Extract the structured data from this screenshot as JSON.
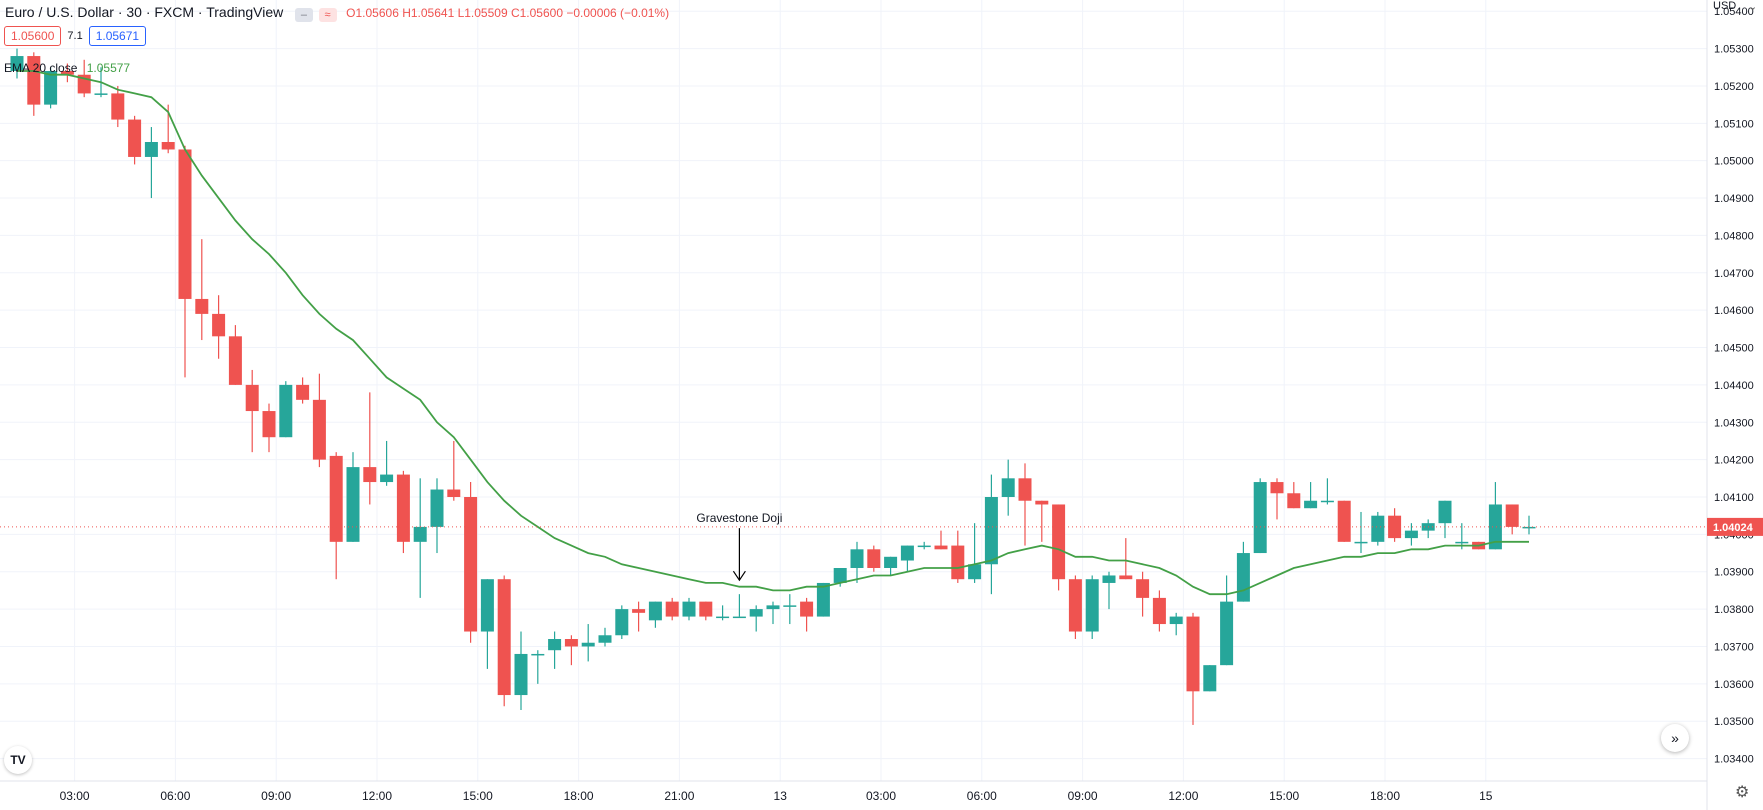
{
  "header": {
    "title": "Euro / U.S. Dollar · 30 · FXCM · TradingView",
    "ohlc": "O1.05606 H1.05641 L1.05509 C1.05600 −0.00006 (−0.01%)",
    "bid": "1.05600",
    "spread": "7.1",
    "ask": "1.05671"
  },
  "indicator": {
    "name": "EMA 20 close",
    "value": "1.05577"
  },
  "currency": "USD",
  "last_price_label": "1.04024",
  "annotation": {
    "text": "Gravestone Doji"
  },
  "colors": {
    "up": "#26a69a",
    "down": "#ef5350",
    "ema": "#43a047",
    "grid": "#f0f3fa"
  },
  "chart_data": {
    "type": "candlestick",
    "title": "Euro / U.S. Dollar · 30 · FXCM · TradingView",
    "ylim": [
      1.0334,
      1.0543
    ],
    "y_ticks": [
      "1.05400",
      "1.05300",
      "1.05200",
      "1.05100",
      "1.05000",
      "1.04900",
      "1.04800",
      "1.04700",
      "1.04600",
      "1.04500",
      "1.04400",
      "1.04300",
      "1.04200",
      "1.04100",
      "1.04000",
      "1.03900",
      "1.03800",
      "1.03700",
      "1.03600",
      "1.03500",
      "1.03400"
    ],
    "x_ticks": [
      {
        "label": "03:00",
        "index": 2
      },
      {
        "label": "06:00",
        "index": 8
      },
      {
        "label": "09:00",
        "index": 14
      },
      {
        "label": "12:00",
        "index": 20
      },
      {
        "label": "15:00",
        "index": 26
      },
      {
        "label": "18:00",
        "index": 32
      },
      {
        "label": "21:00",
        "index": 38
      },
      {
        "label": "13",
        "index": 44
      },
      {
        "label": "03:00",
        "index": 50
      },
      {
        "label": "06:00",
        "index": 56
      },
      {
        "label": "09:00",
        "index": 62
      },
      {
        "label": "12:00",
        "index": 68
      },
      {
        "label": "15:00",
        "index": 74
      },
      {
        "label": "18:00",
        "index": 80
      },
      {
        "label": "15",
        "index": 86
      }
    ],
    "candles": [
      [
        1.0524,
        1.053,
        1.0522,
        1.0528
      ],
      [
        1.0528,
        1.0529,
        1.0512,
        1.0515
      ],
      [
        1.0515,
        1.0525,
        1.0514,
        1.0524
      ],
      [
        1.0524,
        1.0526,
        1.0521,
        1.0523
      ],
      [
        1.0523,
        1.0527,
        1.0517,
        1.0518
      ],
      [
        1.0518,
        1.0525,
        1.0517,
        1.0518
      ],
      [
        1.0518,
        1.052,
        1.0509,
        1.0511
      ],
      [
        1.0511,
        1.0512,
        1.0499,
        1.0501
      ],
      [
        1.0501,
        1.0509,
        1.049,
        1.0505
      ],
      [
        1.0505,
        1.0515,
        1.0502,
        1.0503
      ],
      [
        1.0503,
        1.0504,
        1.0442,
        1.0463
      ],
      [
        1.0463,
        1.0479,
        1.0452,
        1.0459
      ],
      [
        1.0459,
        1.0464,
        1.0447,
        1.0453
      ],
      [
        1.0453,
        1.0456,
        1.044,
        1.044
      ],
      [
        1.044,
        1.0444,
        1.0422,
        1.0433
      ],
      [
        1.0433,
        1.0435,
        1.0422,
        1.0426
      ],
      [
        1.0426,
        1.0441,
        1.0426,
        1.044
      ],
      [
        1.044,
        1.0442,
        1.0435,
        1.0436
      ],
      [
        1.0436,
        1.0443,
        1.0418,
        1.042
      ],
      [
        1.0421,
        1.0422,
        1.0388,
        1.0398
      ],
      [
        1.0398,
        1.0422,
        1.0398,
        1.0418
      ],
      [
        1.0418,
        1.0438,
        1.0408,
        1.0414
      ],
      [
        1.0414,
        1.0425,
        1.0413,
        1.0416
      ],
      [
        1.0416,
        1.0417,
        1.0395,
        1.0398
      ],
      [
        1.0398,
        1.0415,
        1.0383,
        1.0402
      ],
      [
        1.0402,
        1.0415,
        1.0395,
        1.0412
      ],
      [
        1.0412,
        1.0425,
        1.0409,
        1.041
      ],
      [
        1.041,
        1.0414,
        1.0371,
        1.0374
      ],
      [
        1.0374,
        1.0388,
        1.0364,
        1.0388
      ],
      [
        1.0388,
        1.0389,
        1.0354,
        1.0357
      ],
      [
        1.0357,
        1.0374,
        1.0353,
        1.0368
      ],
      [
        1.0368,
        1.0369,
        1.036,
        1.0368
      ],
      [
        1.0369,
        1.0374,
        1.0364,
        1.0372
      ],
      [
        1.0372,
        1.0373,
        1.0365,
        1.037
      ],
      [
        1.037,
        1.0376,
        1.0366,
        1.0371
      ],
      [
        1.0371,
        1.0375,
        1.037,
        1.0373
      ],
      [
        1.0373,
        1.0381,
        1.0372,
        1.038
      ],
      [
        1.038,
        1.0382,
        1.0374,
        1.0379
      ],
      [
        1.0377,
        1.0382,
        1.0375,
        1.0382
      ],
      [
        1.0382,
        1.0383,
        1.0377,
        1.0378
      ],
      [
        1.0378,
        1.0383,
        1.0377,
        1.0382
      ],
      [
        1.0382,
        1.0382,
        1.0377,
        1.0378
      ],
      [
        1.0378,
        1.0381,
        1.0377,
        1.0378
      ],
      [
        1.0378,
        1.0384,
        1.0378,
        1.0378
      ],
      [
        1.0378,
        1.0381,
        1.0374,
        1.038
      ],
      [
        1.038,
        1.0382,
        1.0376,
        1.0381
      ],
      [
        1.0381,
        1.0384,
        1.0376,
        1.0381
      ],
      [
        1.0382,
        1.0383,
        1.0374,
        1.0378
      ],
      [
        1.0378,
        1.0387,
        1.0378,
        1.0387
      ],
      [
        1.0387,
        1.0391,
        1.0386,
        1.0391
      ],
      [
        1.0391,
        1.0398,
        1.0387,
        1.0396
      ],
      [
        1.0396,
        1.0397,
        1.039,
        1.0391
      ],
      [
        1.0391,
        1.0394,
        1.0389,
        1.0394
      ],
      [
        1.0393,
        1.0397,
        1.039,
        1.0397
      ],
      [
        1.0397,
        1.0398,
        1.0396,
        1.0397
      ],
      [
        1.0397,
        1.0401,
        1.0396,
        1.0396
      ],
      [
        1.0397,
        1.0401,
        1.0387,
        1.0388
      ],
      [
        1.0388,
        1.0403,
        1.0387,
        1.0392
      ],
      [
        1.0392,
        1.0416,
        1.0384,
        1.041
      ],
      [
        1.041,
        1.042,
        1.0405,
        1.0415
      ],
      [
        1.0415,
        1.0419,
        1.0397,
        1.0409
      ],
      [
        1.0409,
        1.0409,
        1.0398,
        1.0408
      ],
      [
        1.0408,
        1.0408,
        1.0385,
        1.0388
      ],
      [
        1.0388,
        1.0389,
        1.0372,
        1.0374
      ],
      [
        1.0374,
        1.0389,
        1.0372,
        1.0388
      ],
      [
        1.0387,
        1.039,
        1.038,
        1.0389
      ],
      [
        1.0389,
        1.0399,
        1.0388,
        1.0388
      ],
      [
        1.0388,
        1.039,
        1.0378,
        1.0383
      ],
      [
        1.0383,
        1.0385,
        1.0374,
        1.0376
      ],
      [
        1.0376,
        1.0379,
        1.0373,
        1.0378
      ],
      [
        1.0378,
        1.0379,
        1.0349,
        1.0358
      ],
      [
        1.0358,
        1.0365,
        1.0358,
        1.0365
      ],
      [
        1.0365,
        1.0389,
        1.0365,
        1.0382
      ],
      [
        1.0382,
        1.0398,
        1.0382,
        1.0395
      ],
      [
        1.0395,
        1.0415,
        1.0395,
        1.0414
      ],
      [
        1.0414,
        1.0415,
        1.0404,
        1.0411
      ],
      [
        1.0411,
        1.0414,
        1.0407,
        1.0407
      ],
      [
        1.0407,
        1.0414,
        1.0407,
        1.0409
      ],
      [
        1.0409,
        1.0415,
        1.0408,
        1.0409
      ],
      [
        1.0409,
        1.0409,
        1.0398,
        1.0398
      ],
      [
        1.0398,
        1.0406,
        1.0395,
        1.0398
      ],
      [
        1.0398,
        1.0406,
        1.0397,
        1.0405
      ],
      [
        1.0405,
        1.0407,
        1.0398,
        1.0399
      ],
      [
        1.0399,
        1.0403,
        1.0397,
        1.0401
      ],
      [
        1.0401,
        1.0404,
        1.0399,
        1.0403
      ],
      [
        1.0403,
        1.0409,
        1.0399,
        1.0409
      ],
      [
        1.0398,
        1.0403,
        1.0396,
        1.0398
      ],
      [
        1.0398,
        1.0398,
        1.0396,
        1.0396
      ],
      [
        1.0396,
        1.0414,
        1.0396,
        1.0408
      ],
      [
        1.0408,
        1.0408,
        1.04,
        1.0402
      ],
      [
        1.0402,
        1.0405,
        1.04,
        1.0402
      ]
    ],
    "ema": [
      1.0524,
      1.0524,
      1.0523,
      1.0523,
      1.0522,
      1.0521,
      1.0519,
      1.0518,
      1.0517,
      1.0513,
      1.0503,
      1.0496,
      1.049,
      1.0484,
      1.0479,
      1.0475,
      1.047,
      1.0464,
      1.0459,
      1.0455,
      1.0452,
      1.0447,
      1.0442,
      1.0439,
      1.0436,
      1.043,
      1.0426,
      1.042,
      1.0414,
      1.0409,
      1.0405,
      1.0402,
      1.0399,
      1.0397,
      1.0395,
      1.0394,
      1.0392,
      1.0391,
      1.039,
      1.0389,
      1.0388,
      1.0387,
      1.0387,
      1.0386,
      1.0386,
      1.0385,
      1.0385,
      1.0386,
      1.0386,
      1.0387,
      1.0388,
      1.0389,
      1.0389,
      1.039,
      1.0391,
      1.0391,
      1.0391,
      1.0392,
      1.0393,
      1.0395,
      1.0396,
      1.0397,
      1.0396,
      1.0394,
      1.0394,
      1.0393,
      1.0393,
      1.0392,
      1.0391,
      1.0389,
      1.0386,
      1.0384,
      1.0384,
      1.0385,
      1.0387,
      1.0389,
      1.0391,
      1.0392,
      1.0393,
      1.0394,
      1.0394,
      1.0395,
      1.0395,
      1.0396,
      1.0396,
      1.0397,
      1.0397,
      1.0397,
      1.0398,
      1.0398,
      1.0398
    ],
    "annotation": {
      "label": "Gravestone Doji",
      "index": 43
    }
  }
}
